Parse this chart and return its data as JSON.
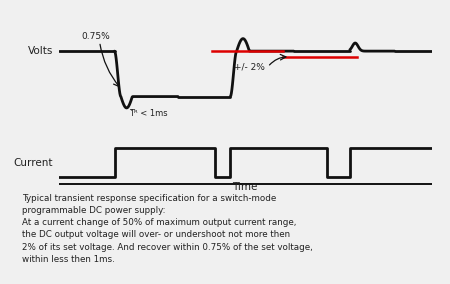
{
  "bg_color": "#f0f0f0",
  "border_color": "#bbbbbb",
  "line_color": "#111111",
  "red_color": "#dd0000",
  "text_color": "#222222",
  "volts_label": "Volts",
  "current_label": "Current",
  "time_label": "Time",
  "annotation_075": "0.75%",
  "annotation_tr": "Tᴿ < 1ms",
  "annotation_pm2": "+/- 2%",
  "caption": "Typical transient response specification for a switch-mode\nprogrammable DC power supply:\nAt a current change of 50% of maximum output current range,\nthe DC output voltage will over- or undershoot not more then\n2% of its set voltage. And recover within 0.75% of the set voltage,\nwithin less then 1ms.",
  "high": 1.0,
  "low": -1.0,
  "over": 0.55,
  "under": 0.5
}
